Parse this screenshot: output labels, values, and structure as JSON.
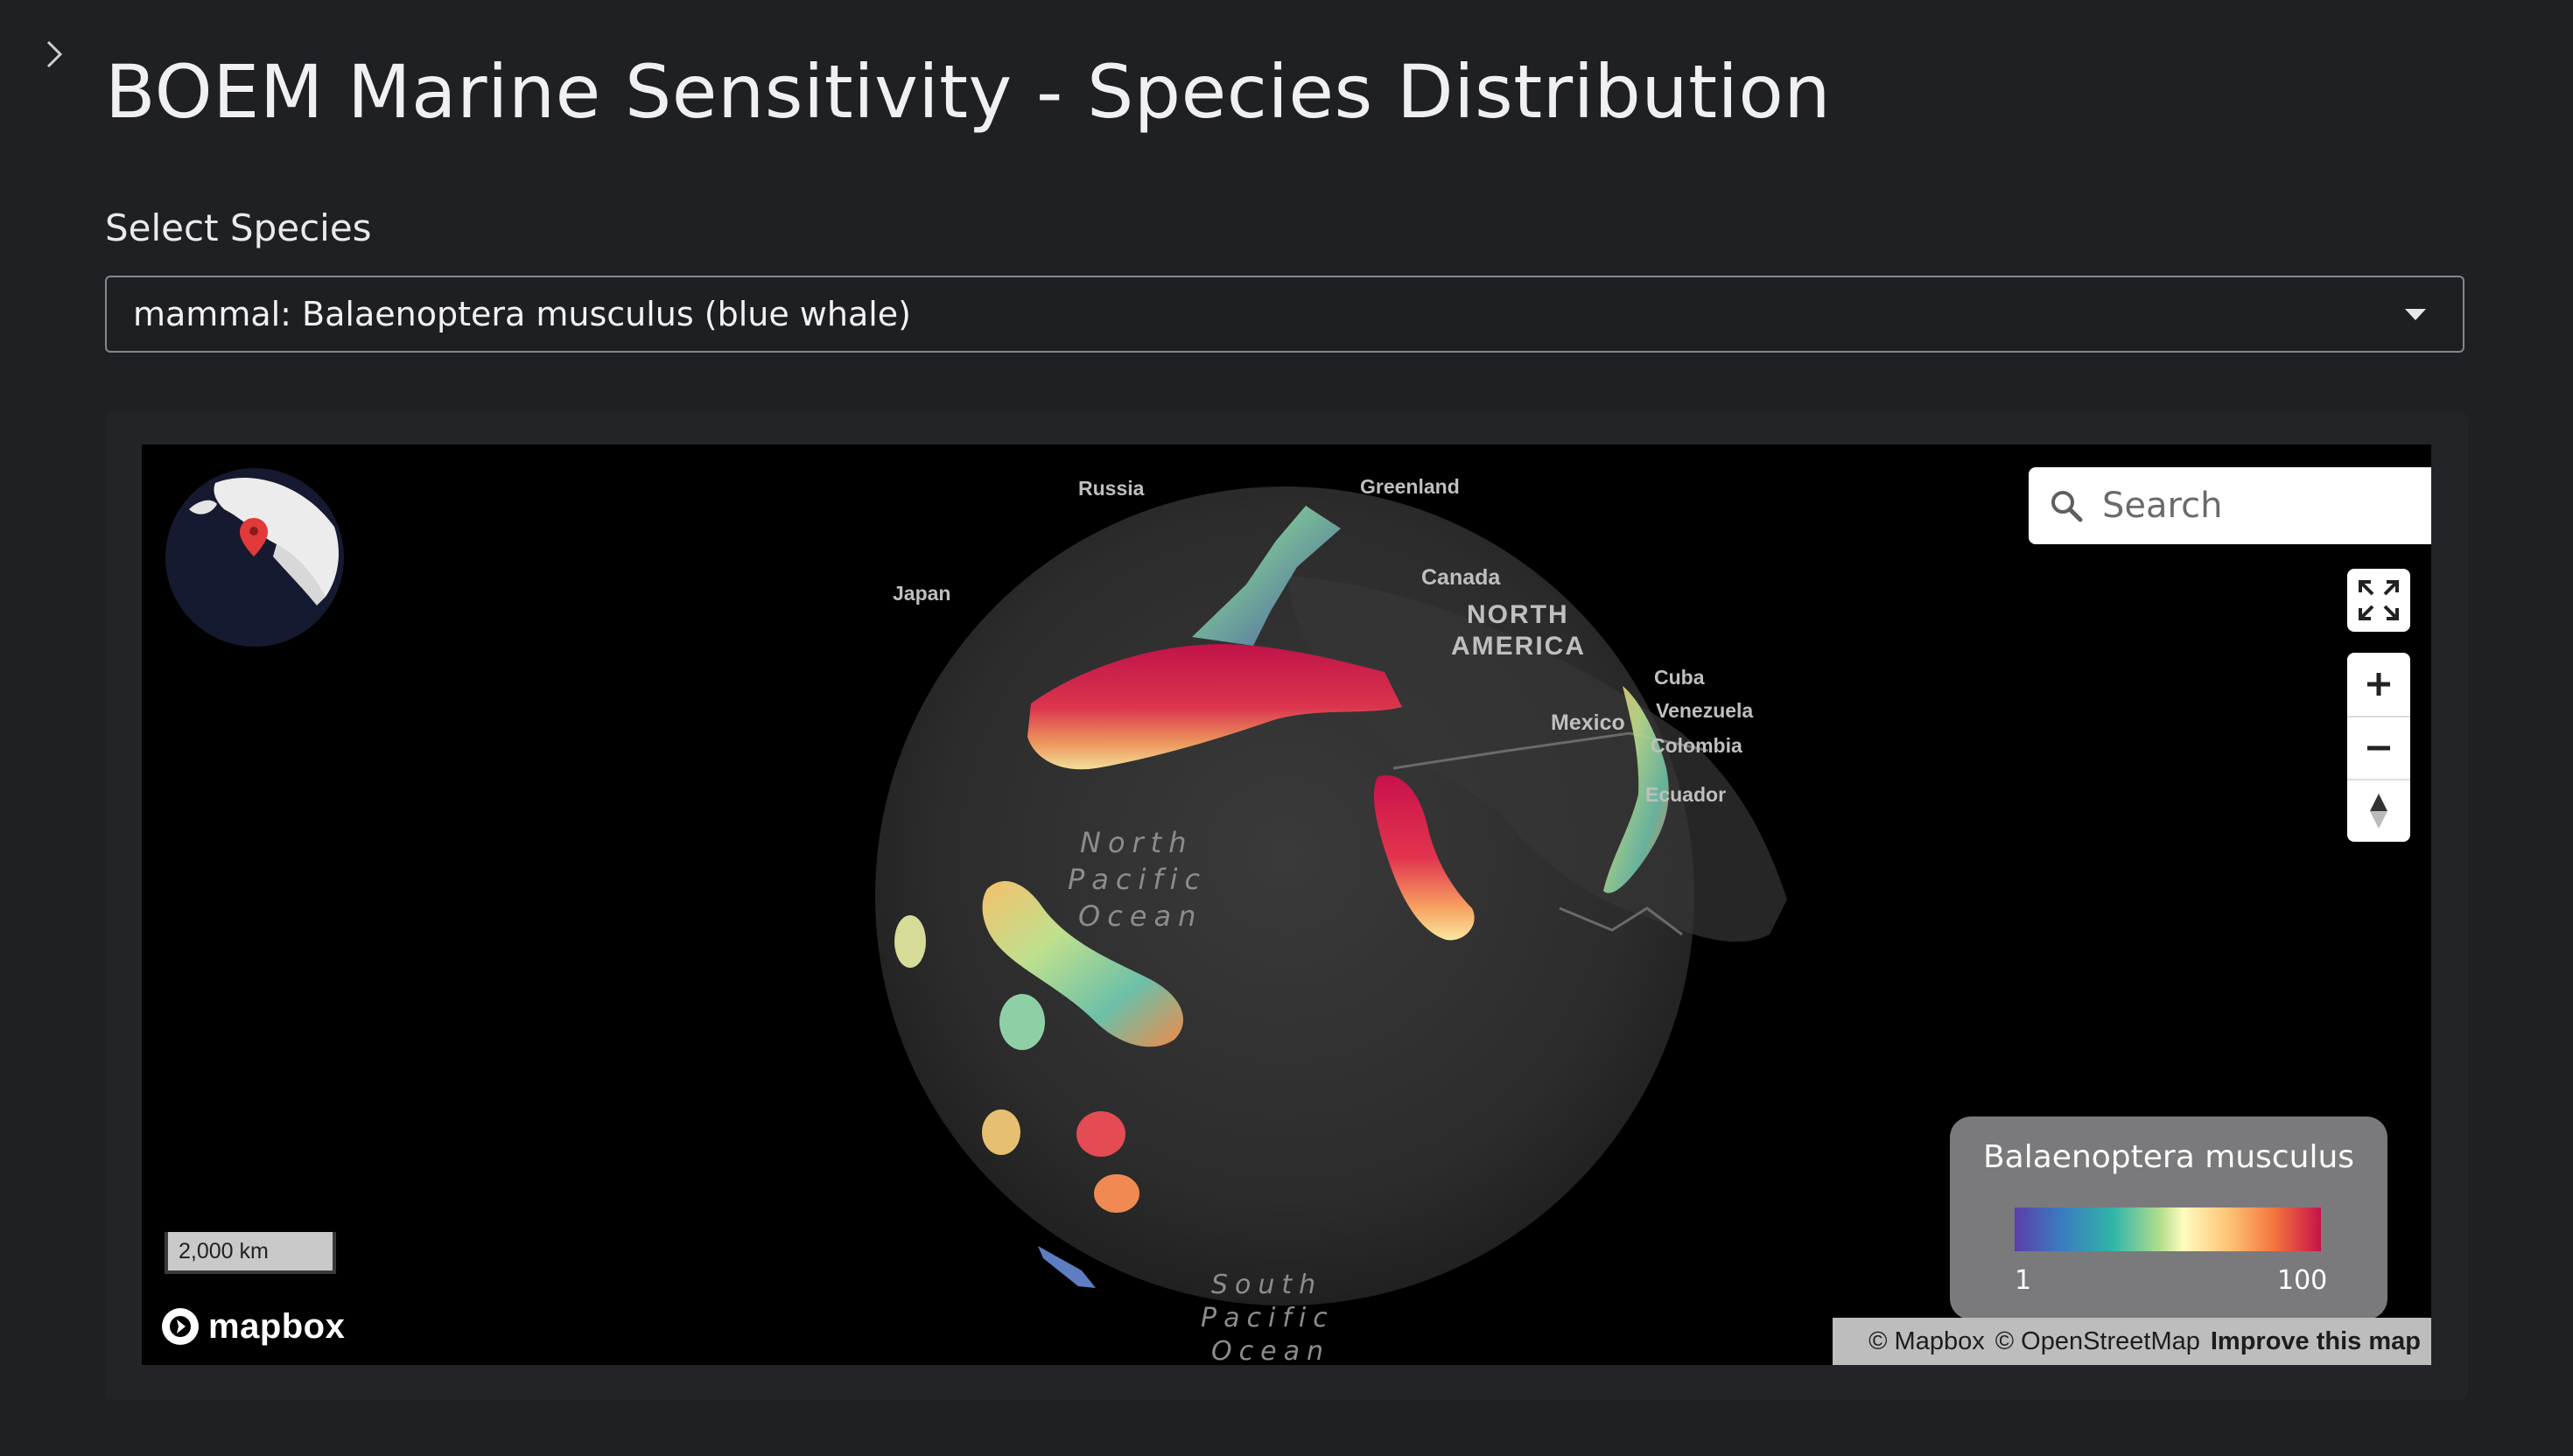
{
  "page": {
    "title": "BOEM Marine Sensitivity - Species Distribution"
  },
  "selector": {
    "label": "Select Species",
    "value": "mammal: Balaenoptera musculus (blue whale)"
  },
  "map": {
    "search_placeholder": "Search",
    "place_labels": {
      "russia": "Russia",
      "greenland": "Greenland",
      "japan": "Japan",
      "canada": "Canada",
      "north_america_1": "NORTH",
      "north_america_2": "AMERICA",
      "cuba": "Cuba",
      "venezuela": "Venezuela",
      "mexico": "Mexico",
      "colombia": "Colombia",
      "ecuador": "Ecuador"
    },
    "ocean_labels": {
      "north_pacific_1": "North",
      "north_pacific_2": "Pacific",
      "north_pacific_3": "Ocean",
      "south_pacific_1": "South",
      "south_pacific_2": "Pacific",
      "south_pacific_3": "Ocean"
    },
    "scale_bar": "2,000 km",
    "logo": "mapbox",
    "attribution": {
      "mapbox": "© Mapbox",
      "osm": "© OpenStreetMap",
      "improve": "Improve this map"
    },
    "legend": {
      "title": "Balaenoptera musculus",
      "min": "1",
      "max": "100",
      "colors": [
        "#5a3fa8",
        "#2fb5a8",
        "#fffcc0",
        "#f3723c",
        "#c8124a"
      ]
    },
    "controls": [
      "fullscreen-icon",
      "zoom-in-icon",
      "zoom-out-icon",
      "compass-icon"
    ]
  }
}
